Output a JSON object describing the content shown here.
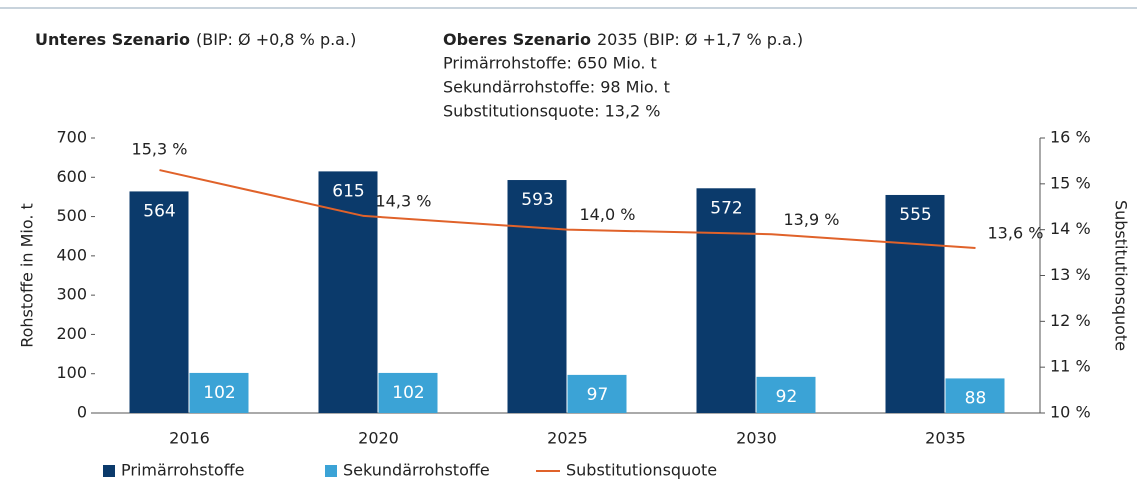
{
  "chart_data": {
    "type": "bar",
    "annotations": [
      {
        "title": "Unteres Szenario",
        "text": "(BIP: Ø +0,8 % p.a.)"
      },
      {
        "title": "Oberes Szenario",
        "text": "2035 (BIP: Ø +1,7 % p.a.)",
        "lines": [
          "Primärrohstoffe: 650 Mio. t",
          "Sekundärrohstoffe: 98 Mio. t",
          "Substitutionsquote: 13,2 %"
        ]
      }
    ],
    "y_label": "Rohstoffe in Mio. t",
    "y2_label": "Substitutionsquote",
    "categories": [
      "2016",
      "2020",
      "2025",
      "2030",
      "2035"
    ],
    "series": [
      {
        "name": "Primärrohstoffe",
        "type": "bar",
        "color": "#0b3a6b",
        "values": [
          564,
          615,
          593,
          572,
          555
        ]
      },
      {
        "name": "Sekundärrohstoffe",
        "type": "bar",
        "color": "#3ba3d6",
        "values": [
          102,
          102,
          97,
          92,
          88
        ]
      },
      {
        "name": "Substitutionsquote",
        "type": "line",
        "axis": "y2",
        "color": "#e0622a",
        "values": [
          15.3,
          14.3,
          14.0,
          13.9,
          13.6
        ],
        "value_labels": [
          "15,3 %",
          "14,3 %",
          "14,0 %",
          "13,9 %",
          "13,6 %"
        ]
      }
    ],
    "ylim": [
      0,
      700
    ],
    "yticks": [
      0,
      100,
      200,
      300,
      400,
      500,
      600,
      700
    ],
    "y2lim": [
      10,
      16
    ],
    "y2ticks": [
      {
        "value": 10,
        "label": "10 %"
      },
      {
        "value": 11,
        "label": "11 %"
      },
      {
        "value": 12,
        "label": "12 %"
      },
      {
        "value": 13,
        "label": "13 %"
      },
      {
        "value": 14,
        "label": "14 %"
      },
      {
        "value": 15,
        "label": "15 %"
      },
      {
        "value": 16,
        "label": "16 %"
      }
    ],
    "legend": "bottom-left"
  }
}
